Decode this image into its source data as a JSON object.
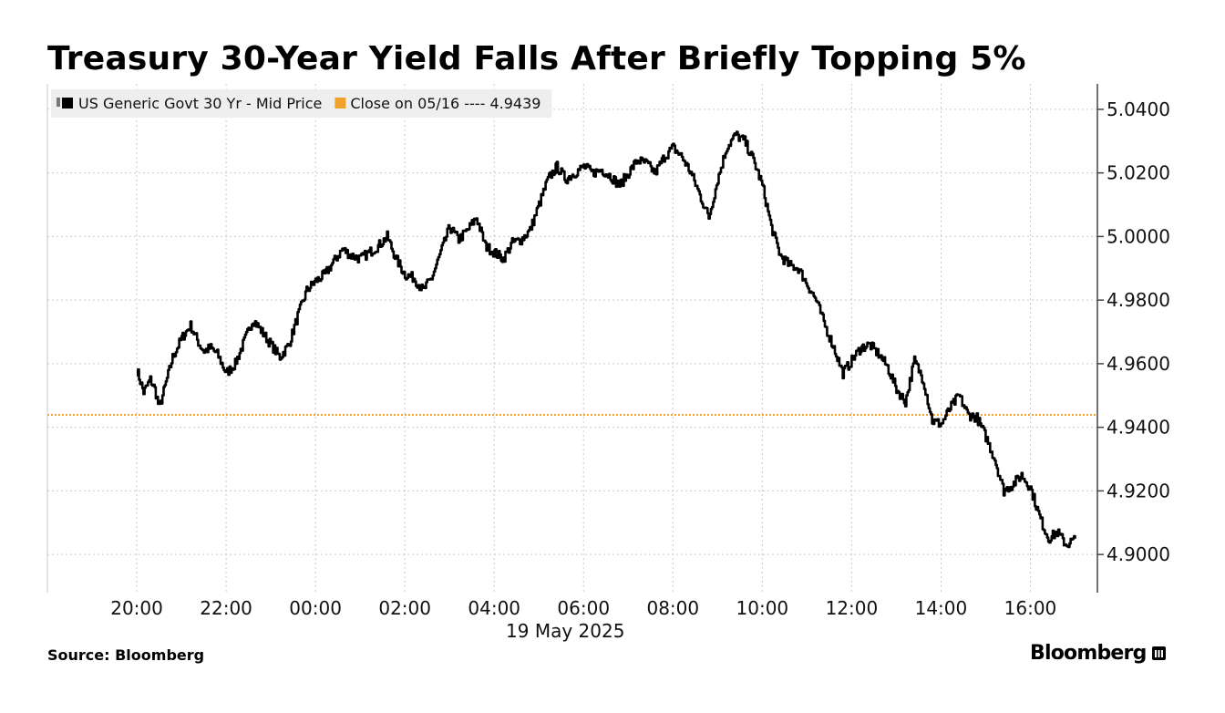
{
  "title": "Treasury 30-Year Yield Falls After Briefly Topping 5%",
  "footer": {
    "source": "Source: Bloomberg",
    "brand": "Bloomberg"
  },
  "colors": {
    "series": "#000000",
    "reference": "#f0a12a",
    "grid": "#c9c9c9",
    "legend_bg": "#eeeeee"
  },
  "chart_data": {
    "type": "line",
    "title": "Treasury 30-Year Yield Falls After Briefly Topping 5%",
    "xlabel": "19 May 2025",
    "ylabel": "",
    "ylim": [
      4.888,
      5.048
    ],
    "xlim": [
      -2,
      21.5
    ],
    "x_tick_labels": [
      "20:00",
      "22:00",
      "00:00",
      "02:00",
      "04:00",
      "06:00",
      "08:00",
      "10:00",
      "12:00",
      "14:00",
      "16:00"
    ],
    "x_tick_hours": [
      0,
      2,
      4,
      6,
      8,
      10,
      12,
      14,
      16,
      18,
      20
    ],
    "date_label": "19 May 2025",
    "y_ticks": [
      4.9,
      4.92,
      4.94,
      4.96,
      4.98,
      5.0,
      5.02,
      5.04
    ],
    "y_tick_labels": [
      "4.9000",
      "4.9200",
      "4.9400",
      "4.9600",
      "4.9800",
      "5.0000",
      "5.0200",
      "5.0400"
    ],
    "legend": [
      {
        "name": "US Generic Govt 30 Yr - Mid Price",
        "marker": "square",
        "color": "#000000"
      },
      {
        "name": "Close on 05/16 ---- 4.9439",
        "marker": "square",
        "color": "#f0a12a"
      }
    ],
    "reference_line": {
      "name": "Close on 05/16",
      "value": 4.9439
    },
    "series": [
      {
        "name": "US Generic Govt 30 Yr - Mid Price",
        "hours_since_start": [
          0,
          0.15,
          0.3,
          0.4,
          0.5,
          0.65,
          0.8,
          1.0,
          1.2,
          1.4,
          1.5,
          1.65,
          1.8,
          2.0,
          2.2,
          2.4,
          2.6,
          2.8,
          3.0,
          3.2,
          3.4,
          3.6,
          3.8,
          4.0,
          4.2,
          4.4,
          4.6,
          4.8,
          5.0,
          5.2,
          5.4,
          5.6,
          5.8,
          6.0,
          6.2,
          6.4,
          6.6,
          6.8,
          7.0,
          7.2,
          7.4,
          7.6,
          7.8,
          8.0,
          8.2,
          8.4,
          8.6,
          8.8,
          9.0,
          9.2,
          9.4,
          9.6,
          9.8,
          10.0,
          10.2,
          10.4,
          10.6,
          10.8,
          11.0,
          11.2,
          11.4,
          11.6,
          11.8,
          12.0,
          12.2,
          12.4,
          12.6,
          12.8,
          13.0,
          13.2,
          13.4,
          13.6,
          13.8,
          14.0,
          14.2,
          14.4,
          14.6,
          14.8,
          15.0,
          15.2,
          15.4,
          15.6,
          15.8,
          16.0,
          16.2,
          16.4,
          16.6,
          16.8,
          17.0,
          17.2,
          17.4,
          17.6,
          17.8,
          18.0,
          18.2,
          18.4,
          18.6,
          18.8,
          19.0,
          19.2,
          19.4,
          19.6,
          19.8,
          20.0,
          20.2,
          20.4,
          20.6,
          20.8,
          21.0
        ],
        "values": [
          4.958,
          4.951,
          4.955,
          4.952,
          4.946,
          4.954,
          4.962,
          4.968,
          4.972,
          4.966,
          4.964,
          4.965,
          4.963,
          4.957,
          4.96,
          4.967,
          4.974,
          4.97,
          4.966,
          4.962,
          4.966,
          4.975,
          4.983,
          4.986,
          4.988,
          4.992,
          4.996,
          4.994,
          4.993,
          4.995,
          4.997,
          5.0,
          4.993,
          4.988,
          4.987,
          4.983,
          4.987,
          4.995,
          5.003,
          4.999,
          5.002,
          5.006,
          4.997,
          4.995,
          4.993,
          4.998,
          4.999,
          5.002,
          5.01,
          5.018,
          5.022,
          5.018,
          5.02,
          5.022,
          5.02,
          5.021,
          5.019,
          5.016,
          5.02,
          5.024,
          5.023,
          5.02,
          5.025,
          5.028,
          5.025,
          5.02,
          5.013,
          5.006,
          5.018,
          5.028,
          5.032,
          5.03,
          5.024,
          5.016,
          5.003,
          4.994,
          4.991,
          4.99,
          4.985,
          4.98,
          4.972,
          4.965,
          4.957,
          4.961,
          4.965,
          4.966,
          4.963,
          4.959,
          4.952,
          4.948,
          4.961,
          4.955,
          4.942,
          4.941,
          4.946,
          4.95,
          4.944,
          4.943,
          4.937,
          4.93,
          4.92,
          4.922,
          4.925,
          4.921,
          4.912,
          4.905,
          4.907,
          4.903,
          4.905
        ]
      }
    ]
  }
}
